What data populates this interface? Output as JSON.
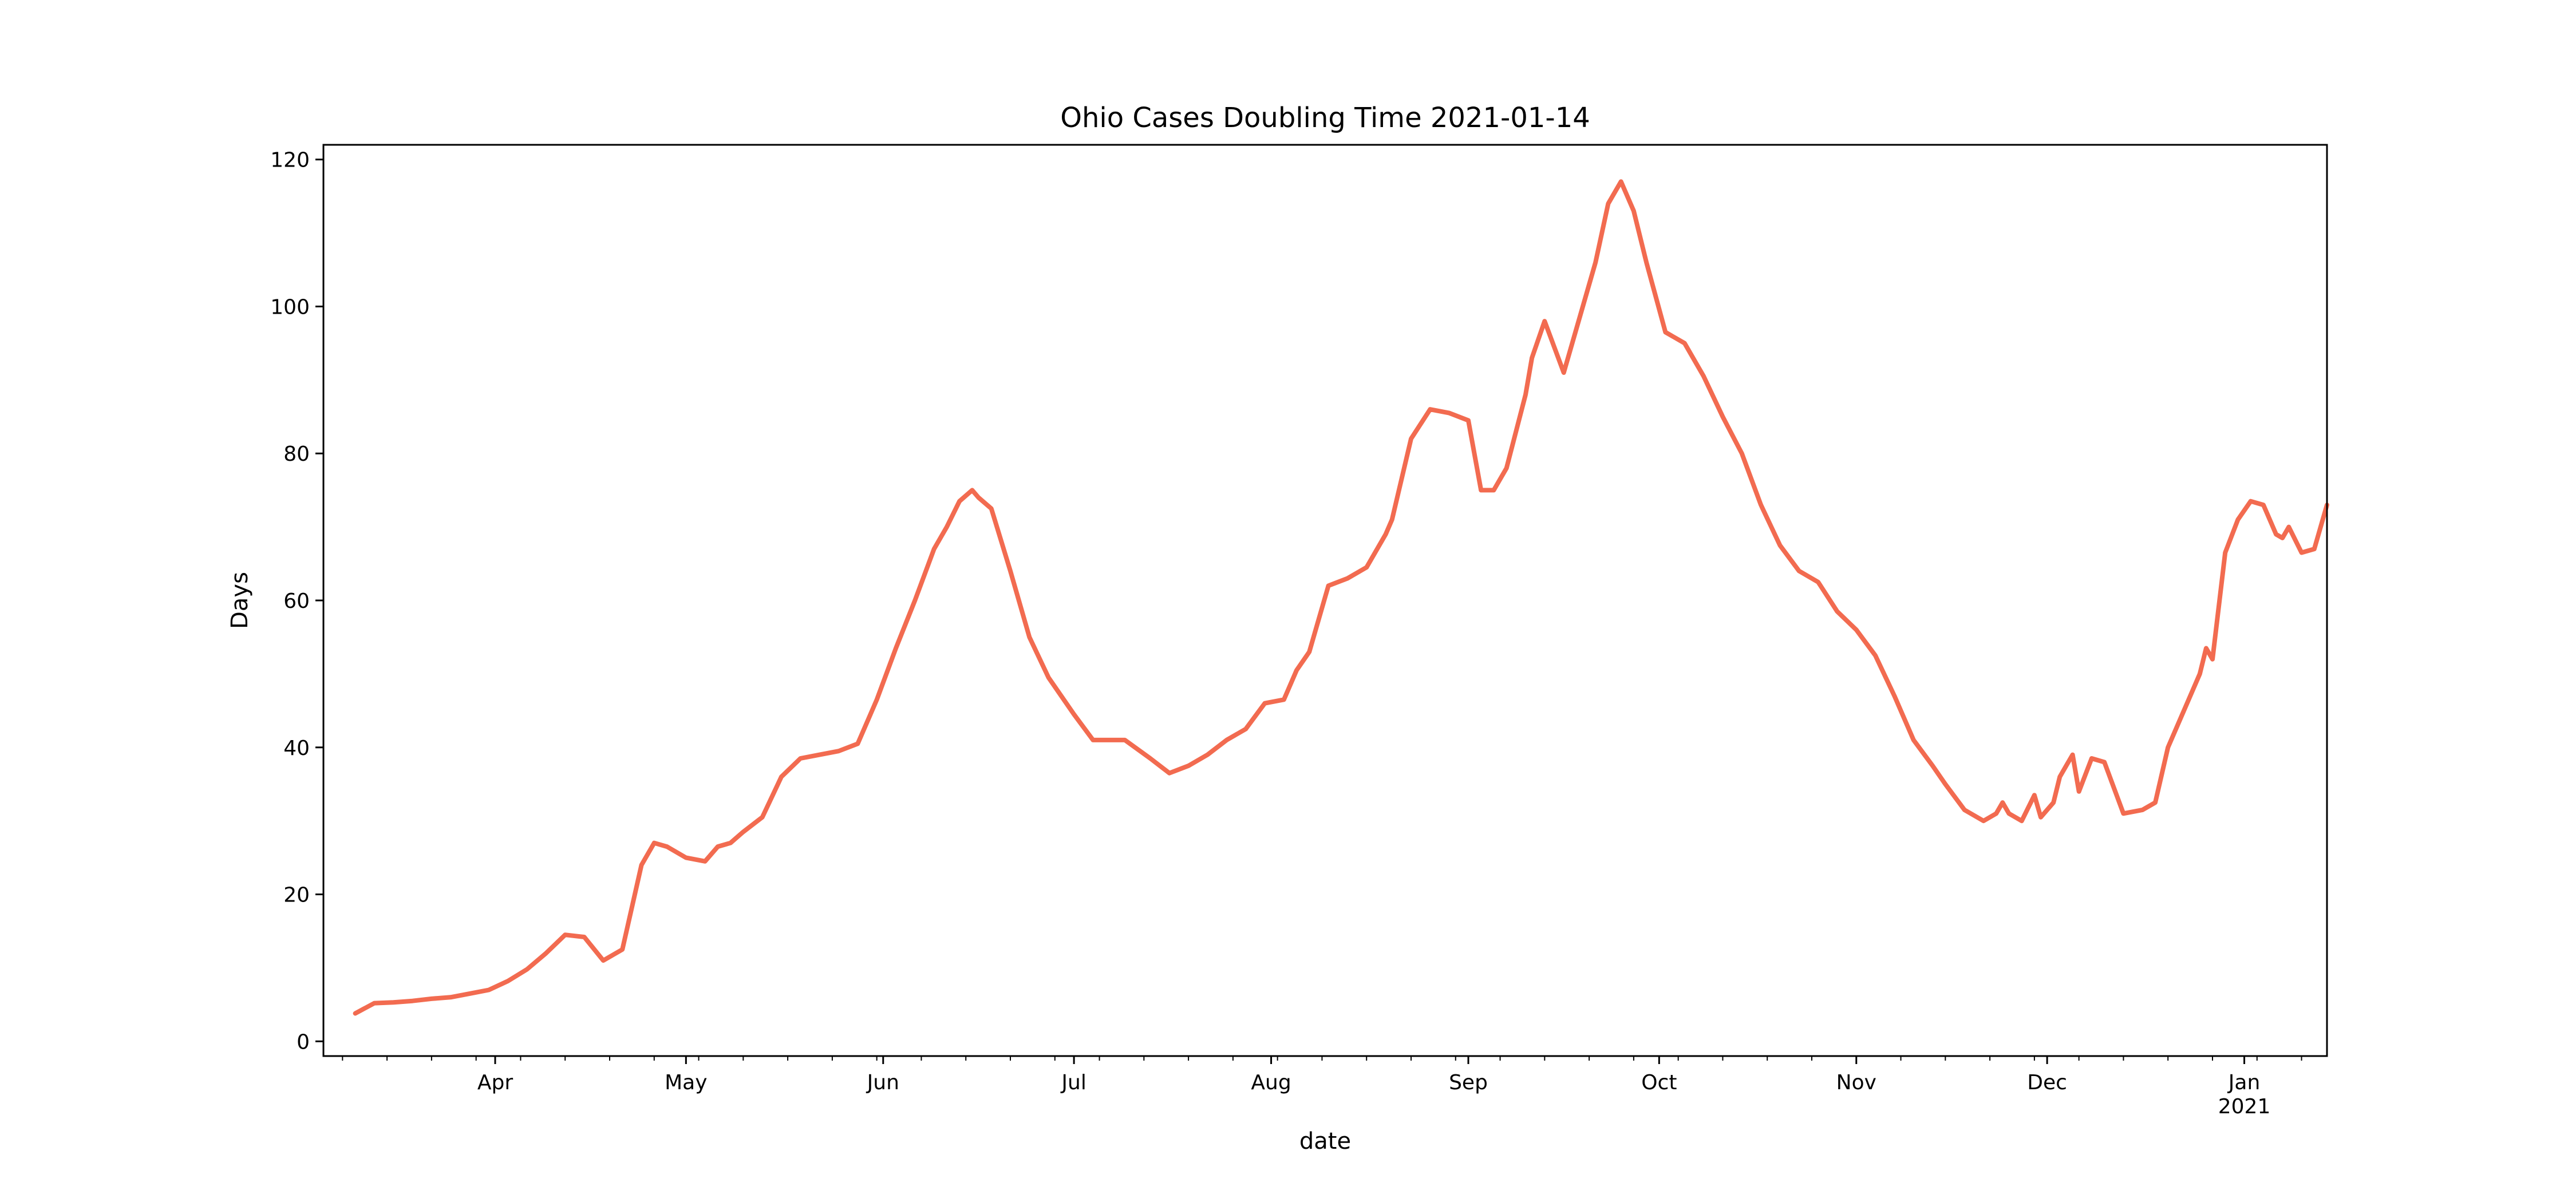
{
  "chart_data": {
    "type": "line",
    "title": "Ohio Cases Doubling Time 2021-01-14",
    "xlabel": "date",
    "ylabel": "Days",
    "ylim": [
      -2,
      122
    ],
    "xlim": [
      "2020-03-05",
      "2021-01-14"
    ],
    "grid": false,
    "color": "#f26b50",
    "y_ticks": [
      0,
      20,
      40,
      60,
      80,
      100,
      120
    ],
    "x_ticks": [
      {
        "date": "2020-04-01",
        "label": "Apr"
      },
      {
        "date": "2020-05-01",
        "label": "May"
      },
      {
        "date": "2020-06-01",
        "label": "Jun"
      },
      {
        "date": "2020-07-01",
        "label": "Jul"
      },
      {
        "date": "2020-08-01",
        "label": "Aug"
      },
      {
        "date": "2020-09-01",
        "label": "Sep"
      },
      {
        "date": "2020-10-01",
        "label": "Oct"
      },
      {
        "date": "2020-11-01",
        "label": "Nov"
      },
      {
        "date": "2020-12-01",
        "label": "Dec"
      },
      {
        "date": "2021-01-01",
        "label": "Jan",
        "sublabel": "2021"
      }
    ],
    "series": [
      {
        "x": [
          "2020-03-10",
          "2020-03-13",
          "2020-03-16",
          "2020-03-19",
          "2020-03-22",
          "2020-03-25",
          "2020-03-28",
          "2020-03-31",
          "2020-04-03",
          "2020-04-06",
          "2020-04-09",
          "2020-04-12",
          "2020-04-15",
          "2020-04-18",
          "2020-04-21",
          "2020-04-24",
          "2020-04-26",
          "2020-04-28",
          "2020-05-01",
          "2020-05-04",
          "2020-05-06",
          "2020-05-08",
          "2020-05-10",
          "2020-05-13",
          "2020-05-16",
          "2020-05-19",
          "2020-05-22",
          "2020-05-25",
          "2020-05-28",
          "2020-05-31",
          "2020-06-03",
          "2020-06-06",
          "2020-06-09",
          "2020-06-11",
          "2020-06-13",
          "2020-06-15",
          "2020-06-16",
          "2020-06-18",
          "2020-06-21",
          "2020-06-24",
          "2020-06-27",
          "2020-07-01",
          "2020-07-04",
          "2020-07-07",
          "2020-07-09",
          "2020-07-13",
          "2020-07-16",
          "2020-07-19",
          "2020-07-22",
          "2020-07-25",
          "2020-07-28",
          "2020-07-31",
          "2020-08-03",
          "2020-08-05",
          "2020-08-07",
          "2020-08-10",
          "2020-08-13",
          "2020-08-16",
          "2020-08-19",
          "2020-08-20",
          "2020-08-23",
          "2020-08-26",
          "2020-08-29",
          "2020-09-01",
          "2020-09-03",
          "2020-09-05",
          "2020-09-07",
          "2020-09-10",
          "2020-09-11",
          "2020-09-13",
          "2020-09-16",
          "2020-09-19",
          "2020-09-21",
          "2020-09-23",
          "2020-09-25",
          "2020-09-27",
          "2020-09-29",
          "2020-10-02",
          "2020-10-05",
          "2020-10-08",
          "2020-10-11",
          "2020-10-14",
          "2020-10-17",
          "2020-10-20",
          "2020-10-23",
          "2020-10-26",
          "2020-10-29",
          "2020-11-01",
          "2020-11-04",
          "2020-11-07",
          "2020-11-10",
          "2020-11-13",
          "2020-11-15",
          "2020-11-18",
          "2020-11-21",
          "2020-11-23",
          "2020-11-24",
          "2020-11-25",
          "2020-11-27",
          "2020-11-29",
          "2020-11-30",
          "2020-12-02",
          "2020-12-03",
          "2020-12-04",
          "2020-12-05",
          "2020-12-06",
          "2020-12-08",
          "2020-12-10",
          "2020-12-13",
          "2020-12-16",
          "2020-12-18",
          "2020-12-20",
          "2020-12-23",
          "2020-12-25",
          "2020-12-26",
          "2020-12-27",
          "2020-12-29",
          "2020-12-31",
          "2021-01-02",
          "2021-01-04",
          "2021-01-06",
          "2021-01-07",
          "2021-01-08",
          "2021-01-10",
          "2021-01-12",
          "2021-01-14"
        ],
        "y": [
          3.8,
          5.2,
          5.3,
          5.5,
          5.8,
          6.0,
          6.5,
          7.0,
          8.2,
          9.8,
          12.0,
          14.5,
          14.2,
          11.0,
          12.5,
          24.0,
          27.0,
          26.5,
          25.0,
          24.5,
          26.5,
          27.0,
          28.5,
          30.5,
          36.0,
          38.5,
          39.0,
          39.5,
          40.5,
          46.5,
          53.5,
          60.0,
          67.0,
          70.0,
          73.5,
          75.0,
          74.0,
          72.5,
          64.0,
          55.0,
          49.5,
          44.5,
          41.0,
          41.0,
          41.0,
          38.5,
          36.5,
          37.5,
          39.0,
          41.0,
          42.5,
          46.0,
          46.5,
          50.5,
          53.0,
          62.0,
          63.0,
          64.5,
          69.0,
          71.0,
          82.0,
          86.0,
          85.5,
          84.5,
          75.0,
          75.0,
          78.0,
          88.0,
          93.0,
          98.0,
          91.0,
          100.0,
          106.0,
          114.0,
          117.0,
          113.0,
          106.0,
          96.5,
          95.0,
          90.5,
          85.0,
          80.0,
          73.0,
          67.5,
          64.0,
          62.5,
          58.5,
          56.0,
          52.5,
          47.0,
          41.0,
          37.5,
          35.0,
          31.5,
          30.0,
          31.0,
          32.5,
          31.0,
          30.0,
          33.5,
          30.5,
          32.5,
          36.0,
          37.5,
          39.0,
          34.0,
          38.5,
          38.0,
          31.0,
          31.5,
          32.5,
          40.0,
          46.0,
          50.0,
          53.5,
          52.0,
          66.5,
          71.0,
          73.5,
          73.0,
          69.0,
          68.5,
          70.0,
          66.5,
          67.0,
          73.0
        ]
      }
    ]
  }
}
